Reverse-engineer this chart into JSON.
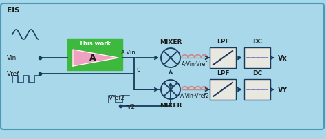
{
  "bg_color": "#a8d8ea",
  "border_color": "#4a9ab5",
  "title": "EIS",
  "green_box_color": "#3dba3d",
  "green_box_label": "This work",
  "amp_triangle_color": "#f0a0c0",
  "amp_label": "A",
  "output_label_amp": "A·Vin",
  "output_label_upper": "A·Vin·Vref",
  "output_label_lower": "A·Vin·Vref2",
  "vx_label": "Vx",
  "vy_label": "VY",
  "vin_label": "Vin",
  "vref_label": "Vref",
  "vref2_label": "Vref2",
  "mixer_label": "MIXER",
  "lpf_label": "LPF",
  "dc_label": "DC",
  "zero_label": "0",
  "pi2_label": "π/2",
  "text_color": "#1a1a1a",
  "line_color": "#1a3a5c",
  "coil_color": "#cc8888",
  "coil_fill": "#f0c8c8",
  "dot_color": "#1a3a5c",
  "dc_dash_color": "#7070c0",
  "lpf_fill": "#e8e8e0",
  "dc_fill": "#e8e8e0"
}
